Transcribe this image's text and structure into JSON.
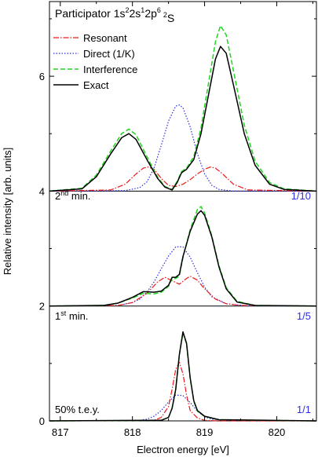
{
  "chart_data": {
    "type": "line",
    "title_main": "Participator 1s",
    "title_rest": "2s",
    "title_sup1": "2",
    "title_sup2": "1",
    "title_mid": "2p",
    "title_sup3": "6",
    "title_sup4": "2",
    "title_end": "S",
    "xlabel": "Electron energy [eV]",
    "ylabel": "Relative intensity [arb. units]",
    "xlim": [
      816.85,
      820.55
    ],
    "ylim": [
      0,
      7.3
    ],
    "x_ticks": [
      817,
      818,
      819,
      820
    ],
    "y_ticks": [
      0,
      2,
      4,
      6
    ],
    "legend": {
      "placement": "top-left",
      "entries": [
        {
          "key": "resonant",
          "label": "Resonant"
        },
        {
          "key": "direct",
          "label": "Direct (1/K)"
        },
        {
          "key": "interference",
          "label": "Interference"
        },
        {
          "key": "exact",
          "label": "Exact"
        }
      ]
    },
    "panels": [
      {
        "label": "50% t.e.y.",
        "label_sup": "",
        "label_rest": "",
        "scale": "1/1",
        "offset": 0
      },
      {
        "label": "1",
        "label_sup": "st",
        "label_rest": " min.",
        "scale": "1/5",
        "offset": 2
      },
      {
        "label": "2",
        "label_sup": "nd",
        "label_rest": " min.",
        "scale": "1/10",
        "offset": 4
      }
    ],
    "colors": {
      "resonant": "#e8191a",
      "direct": "#2d2ee0",
      "interference": "#1fd51f",
      "exact": "#000000",
      "scale_text": "#2d2ee0"
    },
    "series": [
      {
        "key": "exact",
        "panel": 0,
        "x": [
          816.85,
          818.4,
          818.5,
          818.55,
          818.6,
          818.65,
          818.7,
          818.75,
          818.8,
          818.85,
          818.9,
          819.0,
          819.2,
          820.55
        ],
        "y": [
          0,
          0.01,
          0.06,
          0.22,
          0.55,
          1.15,
          1.55,
          1.35,
          0.75,
          0.35,
          0.18,
          0.08,
          0.02,
          0
        ]
      },
      {
        "key": "interference",
        "panel": 0,
        "x": [
          816.85,
          818.4,
          818.5,
          818.55,
          818.6,
          818.65,
          818.7,
          818.75,
          818.8,
          818.85,
          818.9,
          819.0,
          819.2,
          820.55
        ],
        "y": [
          0,
          0.01,
          0.06,
          0.22,
          0.55,
          1.15,
          1.53,
          1.34,
          0.74,
          0.34,
          0.17,
          0.08,
          0.02,
          0
        ]
      },
      {
        "key": "resonant",
        "panel": 0,
        "x": [
          816.85,
          818.3,
          818.4,
          818.5,
          818.55,
          818.6,
          818.65,
          818.7,
          818.75,
          818.8,
          818.9,
          819.0,
          819.2,
          820.55
        ],
        "y": [
          0,
          0.01,
          0.06,
          0.25,
          0.55,
          0.9,
          1.02,
          0.82,
          0.45,
          0.18,
          0.05,
          0.01,
          0,
          0
        ]
      },
      {
        "key": "direct",
        "panel": 0,
        "x": [
          816.85,
          818.1,
          818.2,
          818.3,
          818.4,
          818.5,
          818.6,
          818.7,
          818.8,
          818.9,
          819.0,
          819.1,
          819.3,
          820.55
        ],
        "y": [
          0,
          0.01,
          0.03,
          0.08,
          0.18,
          0.33,
          0.45,
          0.44,
          0.32,
          0.17,
          0.07,
          0.03,
          0.01,
          0
        ]
      },
      {
        "key": "exact",
        "panel": 1,
        "x": [
          816.85,
          817.6,
          817.8,
          818.0,
          818.15,
          818.3,
          818.4,
          818.5,
          818.55,
          818.6,
          818.65,
          818.7,
          818.8,
          818.9,
          818.95,
          819.0,
          819.1,
          819.2,
          819.3,
          819.45,
          819.7,
          820.55
        ],
        "y": [
          2.0,
          2.01,
          2.05,
          2.15,
          2.25,
          2.24,
          2.26,
          2.36,
          2.5,
          2.5,
          2.55,
          2.86,
          3.3,
          3.6,
          3.66,
          3.58,
          3.2,
          2.68,
          2.3,
          2.07,
          2.01,
          2.0
        ]
      },
      {
        "key": "interference",
        "panel": 1,
        "x": [
          816.85,
          817.6,
          817.8,
          818.0,
          818.15,
          818.3,
          818.4,
          818.5,
          818.55,
          818.6,
          818.65,
          818.7,
          818.8,
          818.9,
          818.95,
          819.0,
          819.1,
          819.2,
          819.3,
          819.45,
          819.7,
          820.55
        ],
        "y": [
          2.0,
          2.01,
          2.05,
          2.14,
          2.22,
          2.21,
          2.24,
          2.34,
          2.48,
          2.48,
          2.52,
          2.84,
          3.33,
          3.68,
          3.73,
          3.62,
          3.22,
          2.7,
          2.32,
          2.08,
          2.01,
          2.0
        ]
      },
      {
        "key": "resonant",
        "panel": 1,
        "x": [
          816.85,
          817.8,
          818.0,
          818.2,
          818.35,
          818.45,
          818.55,
          818.65,
          818.75,
          818.8,
          818.9,
          819.0,
          819.15,
          819.3,
          819.5,
          820.55
        ],
        "y": [
          2.0,
          2.01,
          2.06,
          2.22,
          2.42,
          2.5,
          2.44,
          2.38,
          2.48,
          2.52,
          2.45,
          2.3,
          2.12,
          2.04,
          2.01,
          2.0
        ]
      },
      {
        "key": "direct",
        "panel": 1,
        "x": [
          816.85,
          817.8,
          818.0,
          818.1,
          818.2,
          818.3,
          818.4,
          818.5,
          818.6,
          818.7,
          818.8,
          818.9,
          819.0,
          819.1,
          819.3,
          819.6,
          820.55
        ],
        "y": [
          2.0,
          2.01,
          2.06,
          2.12,
          2.24,
          2.42,
          2.65,
          2.87,
          3.03,
          3.03,
          2.85,
          2.58,
          2.33,
          2.16,
          2.04,
          2.0,
          2.0
        ]
      },
      {
        "key": "exact",
        "panel": 2,
        "x": [
          816.85,
          817.3,
          817.5,
          817.7,
          817.85,
          817.95,
          818.05,
          818.2,
          818.35,
          818.45,
          818.55,
          818.62,
          818.68,
          818.75,
          818.85,
          818.95,
          819.05,
          819.15,
          819.22,
          819.3,
          819.4,
          819.55,
          819.7,
          819.9,
          820.1,
          820.55
        ],
        "y": [
          4.0,
          4.04,
          4.25,
          4.65,
          4.93,
          5.0,
          4.9,
          4.55,
          4.22,
          4.07,
          4.02,
          4.15,
          4.32,
          4.38,
          4.55,
          5.0,
          5.65,
          6.3,
          6.52,
          6.4,
          5.85,
          5.0,
          4.45,
          4.12,
          4.03,
          4.0
        ]
      },
      {
        "key": "interference",
        "panel": 2,
        "x": [
          816.85,
          817.3,
          817.5,
          817.7,
          817.85,
          817.95,
          818.05,
          818.2,
          818.35,
          818.45,
          818.55,
          818.62,
          818.68,
          818.75,
          818.85,
          818.95,
          819.05,
          819.15,
          819.22,
          819.3,
          819.4,
          819.55,
          819.7,
          819.9,
          820.1,
          820.55
        ],
        "y": [
          4.0,
          4.05,
          4.28,
          4.7,
          5.0,
          5.08,
          4.98,
          4.6,
          4.24,
          4.08,
          4.03,
          4.17,
          4.34,
          4.4,
          4.6,
          5.1,
          5.85,
          6.6,
          6.88,
          6.72,
          6.1,
          5.15,
          4.52,
          4.15,
          4.04,
          4.0
        ]
      },
      {
        "key": "resonant",
        "panel": 2,
        "x": [
          816.85,
          817.7,
          817.9,
          818.05,
          818.15,
          818.22,
          818.3,
          818.4,
          818.5,
          818.6,
          818.7,
          818.8,
          818.9,
          819.0,
          819.08,
          819.15,
          819.25,
          819.4,
          819.6,
          820.55
        ],
        "y": [
          4.0,
          4.02,
          4.12,
          4.3,
          4.4,
          4.42,
          4.38,
          4.22,
          4.1,
          4.08,
          4.12,
          4.2,
          4.3,
          4.38,
          4.42,
          4.4,
          4.3,
          4.12,
          4.02,
          4.0
        ]
      },
      {
        "key": "direct",
        "panel": 2,
        "x": [
          816.85,
          817.9,
          818.1,
          818.2,
          818.3,
          818.4,
          818.5,
          818.6,
          818.65,
          818.7,
          818.8,
          818.9,
          819.0,
          819.1,
          819.2,
          819.4,
          820.55
        ],
        "y": [
          4.0,
          4.01,
          4.06,
          4.16,
          4.4,
          4.8,
          5.22,
          5.48,
          5.5,
          5.45,
          5.12,
          4.65,
          4.3,
          4.1,
          4.03,
          4.0,
          4.0
        ]
      }
    ]
  }
}
